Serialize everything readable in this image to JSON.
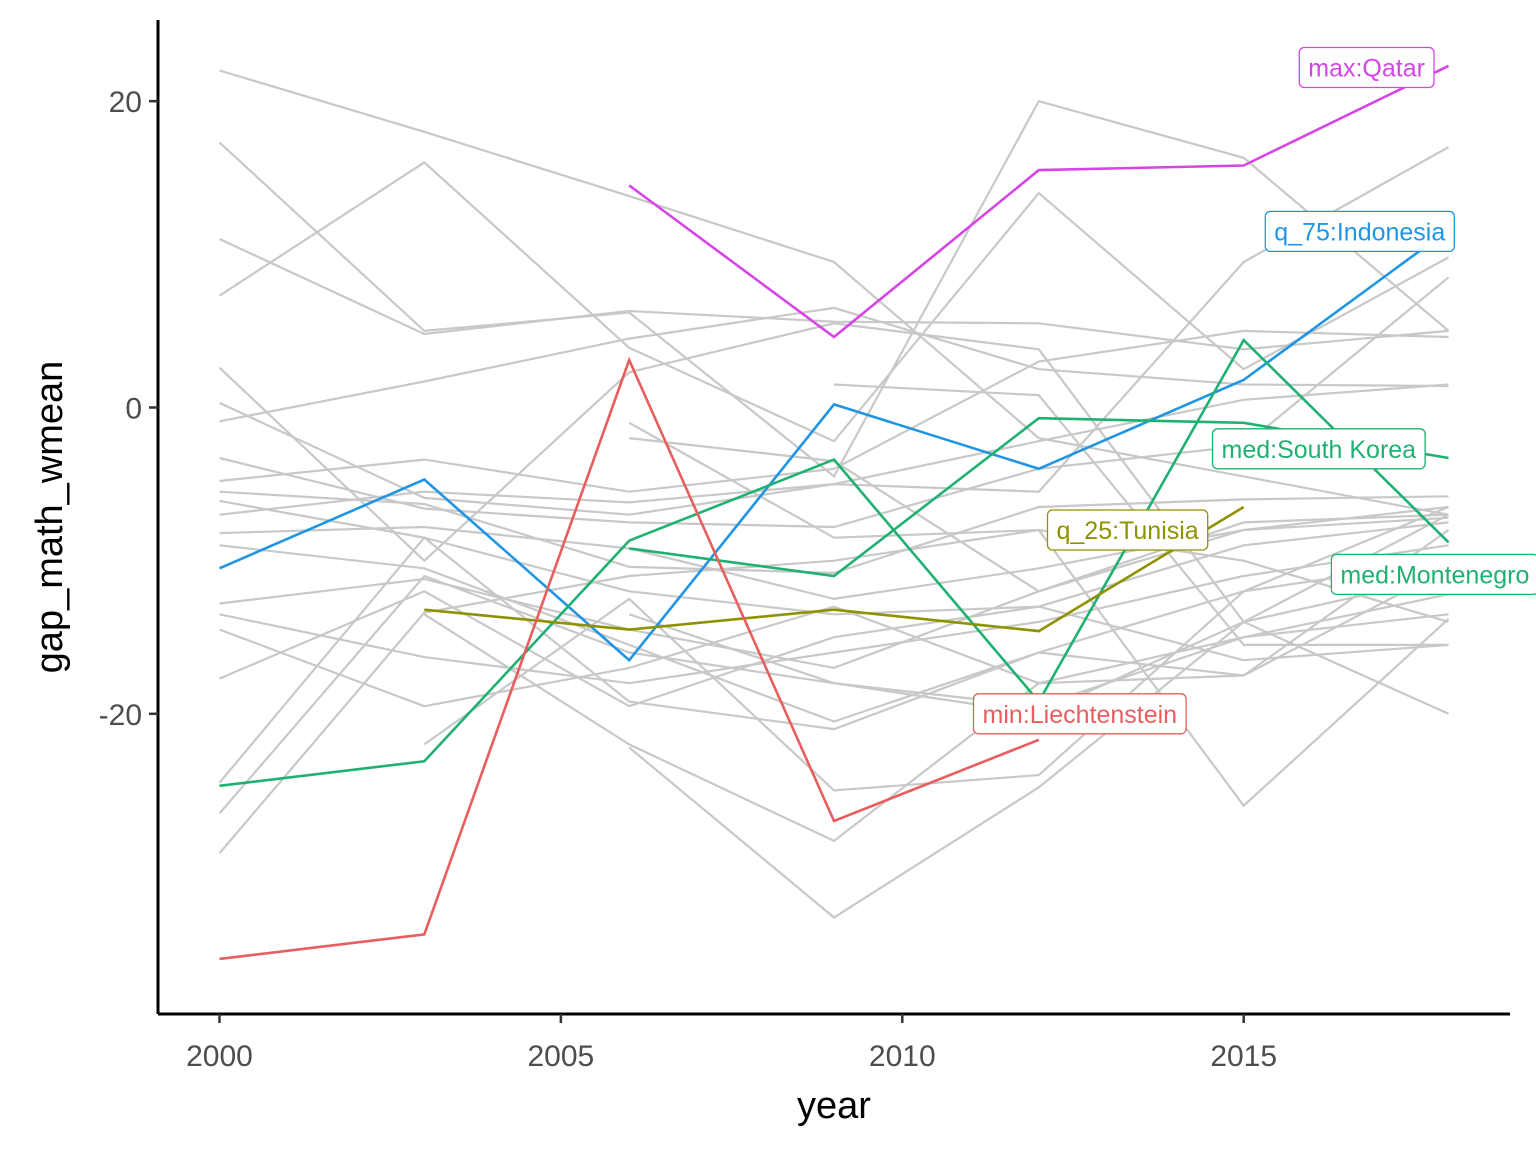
{
  "chart_data": {
    "type": "line",
    "title": "",
    "xlabel": "year",
    "ylabel": "gap_math_wmean",
    "xlim": [
      1999.1,
      2018.9
    ],
    "ylim": [
      -39.6,
      25.3
    ],
    "x_ticks": [
      2000,
      2005,
      2010,
      2015
    ],
    "y_ticks": [
      -20,
      0,
      20
    ],
    "grid": false,
    "legend": "none",
    "background_colors": {
      "line": "#c8c8c8"
    },
    "background_series": [
      {
        "x": [
          2000,
          2003,
          2006,
          2009,
          2012,
          2015,
          2018
        ],
        "y": [
          22,
          18,
          13.8,
          9.5,
          -2,
          -4.5,
          -7
        ]
      },
      {
        "x": [
          2000,
          2003,
          2006,
          2009,
          2012,
          2015,
          2018
        ],
        "y": [
          17.3,
          5,
          6.2,
          -4.5,
          20,
          16.3,
          5
        ]
      },
      {
        "x": [
          2000,
          2003,
          2006,
          2009,
          2012,
          2015,
          2018
        ],
        "y": [
          11,
          4.8,
          6.3,
          5.6,
          5.5,
          3.8,
          5
        ]
      },
      {
        "x": [
          2000,
          2003,
          2006,
          2009,
          2012,
          2015,
          2018
        ],
        "y": [
          7.3,
          16,
          3.9,
          -2.2,
          14,
          2.5,
          9.8
        ]
      },
      {
        "x": [
          2000,
          2003,
          2006,
          2009,
          2012,
          2015,
          2018
        ],
        "y": [
          2.6,
          -10,
          2.3,
          5.5,
          3.8,
          -14,
          -7
        ]
      },
      {
        "x": [
          2000,
          2003,
          2006,
          2009,
          2012,
          2015,
          2018
        ],
        "y": [
          0.3,
          -5.9,
          -7,
          -5,
          -5.5,
          9.5,
          17
        ]
      },
      {
        "x": [
          2000,
          2003,
          2006,
          2009,
          2012,
          2015,
          2018
        ],
        "y": [
          -0.9,
          1.7,
          4.5,
          6.5,
          2.5,
          1.5,
          1.4
        ]
      },
      {
        "x": [
          2000,
          2003,
          2006,
          2009,
          2012,
          2015,
          2018
        ],
        "y": [
          -3.3,
          -6.6,
          -7.5,
          -7.8,
          -4,
          -2.5,
          8.5
        ]
      },
      {
        "x": [
          2000,
          2003,
          2006,
          2009,
          2012,
          2015,
          2018
        ],
        "y": [
          -4.8,
          -3.4,
          -5.5,
          -4,
          3,
          5,
          4.6
        ]
      },
      {
        "x": [
          2000,
          2003,
          2006,
          2009,
          2012,
          2015,
          2018
        ],
        "y": [
          -5.5,
          -6.3,
          -10.4,
          -10.8,
          -6.5,
          -6,
          -5.8
        ]
      },
      {
        "x": [
          2000,
          2003,
          2006,
          2009,
          2012,
          2015,
          2018
        ],
        "y": [
          -6.1,
          -8.5,
          -12,
          -13.5,
          -13,
          -9,
          -7.5
        ]
      },
      {
        "x": [
          2000,
          2003,
          2006,
          2009,
          2012,
          2015,
          2018
        ],
        "y": [
          -7,
          -5.5,
          -6.2,
          -5,
          -2.2,
          0.5,
          1.5
        ]
      },
      {
        "x": [
          2000,
          2003,
          2006,
          2009,
          2012,
          2015,
          2018
        ],
        "y": [
          -8.2,
          -7.8,
          -9.2,
          -12.5,
          -10.5,
          -8,
          -6.5
        ]
      },
      {
        "x": [
          2000,
          2003,
          2006,
          2009,
          2012,
          2015,
          2018
        ],
        "y": [
          -9,
          -10.5,
          -15.5,
          -20.5,
          -16,
          -12,
          -10
        ]
      },
      {
        "x": [
          2000,
          2003,
          2006,
          2009,
          2012,
          2015,
          2018
        ],
        "y": [
          -12.8,
          -11.2,
          -14.5,
          -17,
          -12,
          -7.5,
          -7
        ]
      },
      {
        "x": [
          2000,
          2003,
          2006,
          2009,
          2012,
          2015,
          2018
        ],
        "y": [
          -13.5,
          -16.3,
          -18,
          -16,
          -14,
          -11,
          -9
        ]
      },
      {
        "x": [
          2000,
          2003,
          2006,
          2009,
          2012,
          2015,
          2018
        ],
        "y": [
          -14.5,
          -19.5,
          -17,
          -13,
          -18,
          -15,
          -13.5
        ]
      },
      {
        "x": [
          2000,
          2003,
          2006,
          2009,
          2012,
          2015,
          2018
        ],
        "y": [
          -17.7,
          -12,
          -19.5,
          -15,
          -13,
          -16.5,
          -15.5
        ]
      },
      {
        "x": [
          2000,
          2003,
          2006,
          2009,
          2012,
          2015,
          2018
        ],
        "y": [
          -24.5,
          -8.5,
          -19.2,
          -21,
          -16,
          -17.5,
          -8
        ]
      },
      {
        "x": [
          2000,
          2003,
          2006,
          2009,
          2012,
          2015,
          2018
        ],
        "y": [
          -26.5,
          -11,
          -16,
          -18,
          -20,
          -14,
          -11
        ]
      },
      {
        "x": [
          2000,
          2003,
          2006,
          2009,
          2012,
          2015,
          2018
        ],
        "y": [
          -29.1,
          -13.4,
          -11,
          -10,
          -8,
          -10,
          -14
        ]
      },
      {
        "x": [
          2003,
          2006,
          2009,
          2012,
          2015,
          2018
        ],
        "y": [
          -22,
          -12.5,
          -25,
          -24,
          -12,
          -6.5
        ]
      },
      {
        "x": [
          2003,
          2006,
          2009,
          2012,
          2015,
          2018
        ],
        "y": [
          -13.5,
          -22,
          -28.3,
          -18,
          -17.5,
          -10.5
        ]
      },
      {
        "x": [
          2006,
          2009,
          2012,
          2015,
          2018
        ],
        "y": [
          -22.2,
          -33.3,
          -24.8,
          -14,
          -20
        ]
      },
      {
        "x": [
          2006,
          2009,
          2012,
          2015,
          2018
        ],
        "y": [
          -1,
          -8.5,
          -8,
          -26,
          -13.8
        ]
      },
      {
        "x": [
          2006,
          2009,
          2012,
          2015,
          2018
        ],
        "y": [
          -2,
          -3.5,
          -12,
          -8,
          -7.2
        ]
      },
      {
        "x": [
          2006,
          2009,
          2012,
          2015,
          2018
        ],
        "y": [
          -13.5,
          -18,
          -19.5,
          -15,
          -12.2
        ]
      },
      {
        "x": [
          2009,
          2012,
          2015,
          2018
        ],
        "y": [
          1.5,
          0.8,
          -15.5,
          -15.5
        ]
      }
    ],
    "series": [
      {
        "label": "max:Qatar",
        "color": "#d545e6",
        "x": [
          2006,
          2009,
          2012,
          2015,
          2018
        ],
        "y": [
          14.5,
          4.6,
          15.5,
          15.8,
          22.3
        ]
      },
      {
        "label": "q_75:Indonesia",
        "color": "#1f95e4",
        "x": [
          2000,
          2003,
          2006,
          2009,
          2012,
          2015,
          2018
        ],
        "y": [
          -10.5,
          -4.7,
          -16.5,
          0.2,
          -4,
          1.8,
          11.6
        ]
      },
      {
        "label": "med:South Korea",
        "color": "#1fb171",
        "x": [
          2006,
          2009,
          2012,
          2015,
          2018
        ],
        "y": [
          -9.2,
          -11,
          -0.7,
          -1,
          -3.3
        ]
      },
      {
        "label": "med:Montenegro",
        "color": "#1fb171",
        "x": [
          2000,
          2003,
          2006,
          2009,
          2012,
          2015,
          2018
        ],
        "y": [
          -24.7,
          -23.1,
          -8.7,
          -3.4,
          -19.2,
          4.4,
          -8.8
        ]
      },
      {
        "label": "q_25:Tunisia",
        "color": "#8f9200",
        "x": [
          2003,
          2006,
          2009,
          2012,
          2015
        ],
        "y": [
          -13.2,
          -14.5,
          -13.2,
          -14.6,
          -6.5
        ]
      },
      {
        "label": "min:Liechtenstein",
        "color": "#e85e5e",
        "x": [
          2000,
          2003,
          2006,
          2009,
          2012
        ],
        "y": [
          -36,
          -34.4,
          3.1,
          -27,
          -21.7
        ]
      }
    ],
    "annotations": [
      {
        "text": "max:Qatar",
        "color": "#d545e6",
        "x": 2016.8,
        "y": 22.2
      },
      {
        "text": "q_75:Indonesia",
        "color": "#1f95e4",
        "x": 2016.7,
        "y": 11.5
      },
      {
        "text": "med:South Korea",
        "color": "#1fb171",
        "x": 2016.1,
        "y": -2.7
      },
      {
        "text": "q_25:Tunisia",
        "color": "#8f9200",
        "x": 2013.3,
        "y": -8
      },
      {
        "text": "med:Montenegro",
        "color": "#1fb171",
        "x": 2017.8,
        "y": -10.9
      },
      {
        "text": "min:Liechtenstein",
        "color": "#e85e5e",
        "x": 2012.6,
        "y": -20
      }
    ]
  }
}
